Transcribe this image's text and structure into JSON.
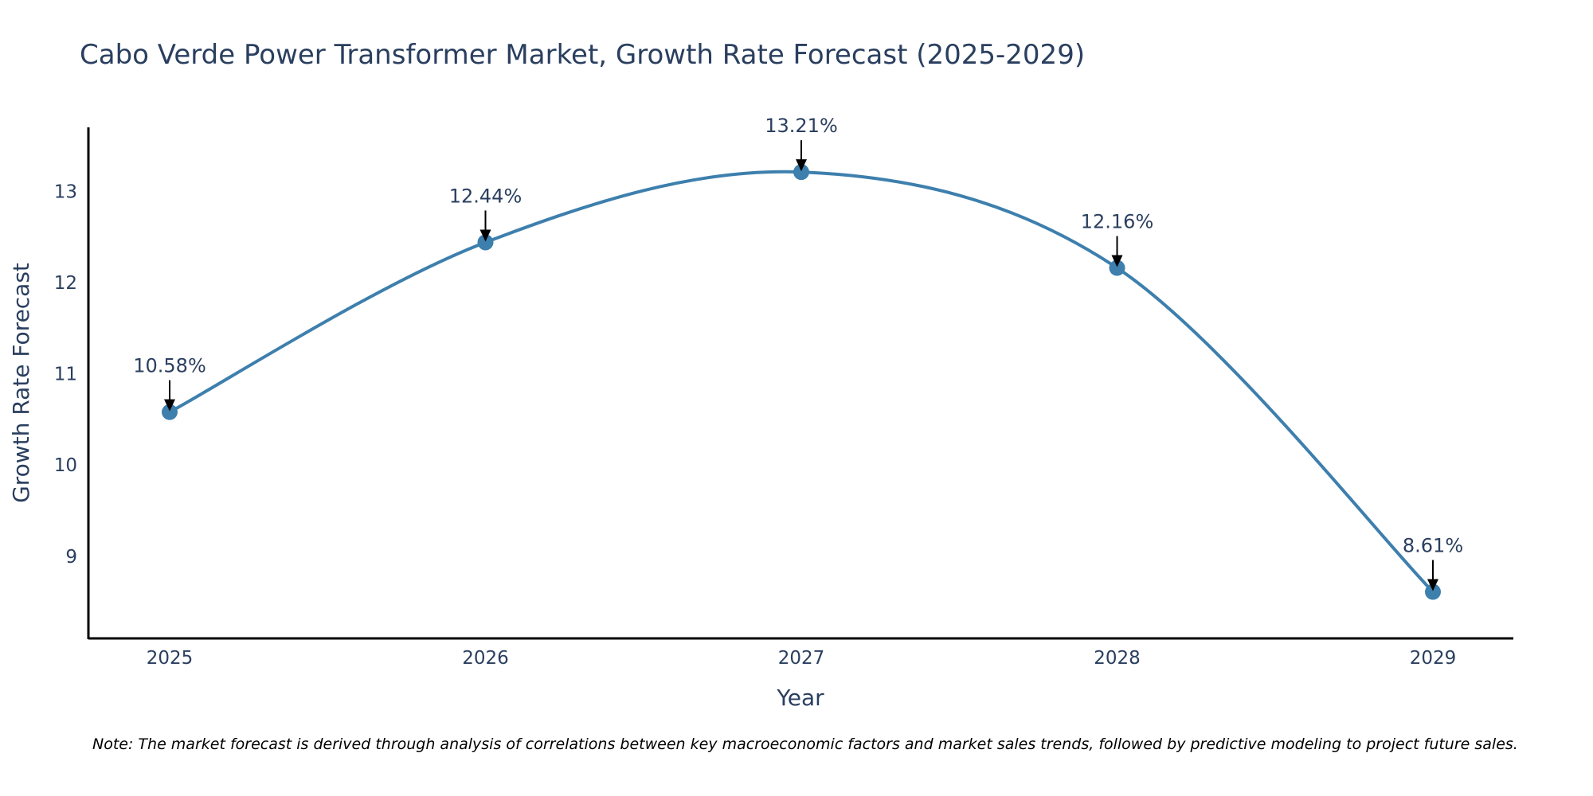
{
  "chart_data": {
    "type": "line",
    "title": "Cabo Verde Power Transformer Market, Growth Rate Forecast (2025-2029)",
    "xlabel": "Year",
    "ylabel": "Growth Rate Forecast",
    "categories": [
      "2025",
      "2026",
      "2027",
      "2028",
      "2029"
    ],
    "series": [
      {
        "name": "Growth Rate Forecast",
        "values": [
          10.58,
          12.44,
          13.21,
          12.16,
          8.61
        ],
        "labels": [
          "10.58%",
          "12.44%",
          "13.21%",
          "12.16%",
          "8.61%"
        ]
      }
    ],
    "ylim": [
      8.1,
      13.7
    ],
    "yticks": [
      "9",
      "10",
      "11",
      "12",
      "13"
    ],
    "grid": false,
    "legend": "none",
    "line_shape": "spline",
    "colors": {
      "line": "#3d7fad",
      "marker": "#3d7fad",
      "text": "#2a3f5f",
      "axis": "#000000",
      "arrow": "#000000"
    },
    "note": "Note: The market forecast is derived through analysis of correlations between key macroeconomic factors and market sales trends, followed by predictive modeling to project future sales."
  }
}
